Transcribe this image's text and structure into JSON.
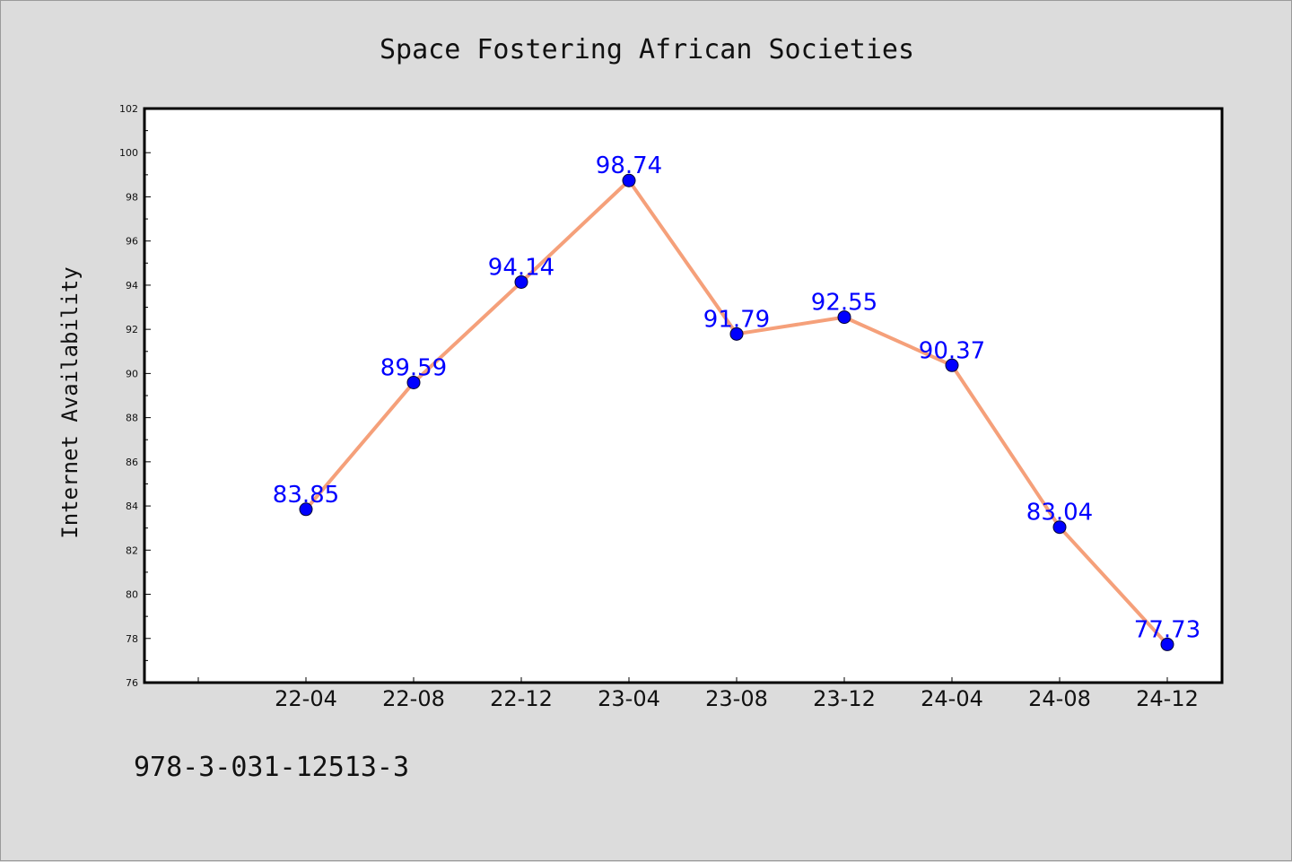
{
  "chart_data": {
    "type": "line",
    "title": "Space Fostering African Societies",
    "xlabel": "",
    "ylabel": "Internet Availability",
    "categories": [
      "22-04",
      "22-08",
      "22-12",
      "23-04",
      "23-08",
      "23-12",
      "24-04",
      "24-08",
      "24-12"
    ],
    "series": [
      {
        "values": [
          83.85,
          89.59,
          94.14,
          98.74,
          91.79,
          92.55,
          90.37,
          83.04,
          77.73
        ],
        "labels": [
          "83.85",
          "89.59",
          "94.14",
          "98.74",
          "91.79",
          "92.55",
          "90.37",
          "83.04",
          "77.73"
        ],
        "line_color": "#f5a07a",
        "marker_color": "#0000ff"
      }
    ],
    "ylim": [
      76,
      102
    ],
    "yticks": [
      "76",
      "78",
      "80",
      "82",
      "84",
      "86",
      "88",
      "90",
      "92",
      "94",
      "96",
      "98",
      "100",
      "102"
    ],
    "grid": false,
    "legend": "none"
  },
  "footnote": "978-3-031-12513-3",
  "colors": {
    "background": "#dcdcdc",
    "plot_area": "#ffffff",
    "axes": "#000000",
    "line": "#f5a07a",
    "markers": "#0000ff",
    "data_labels": "#0000ff"
  }
}
